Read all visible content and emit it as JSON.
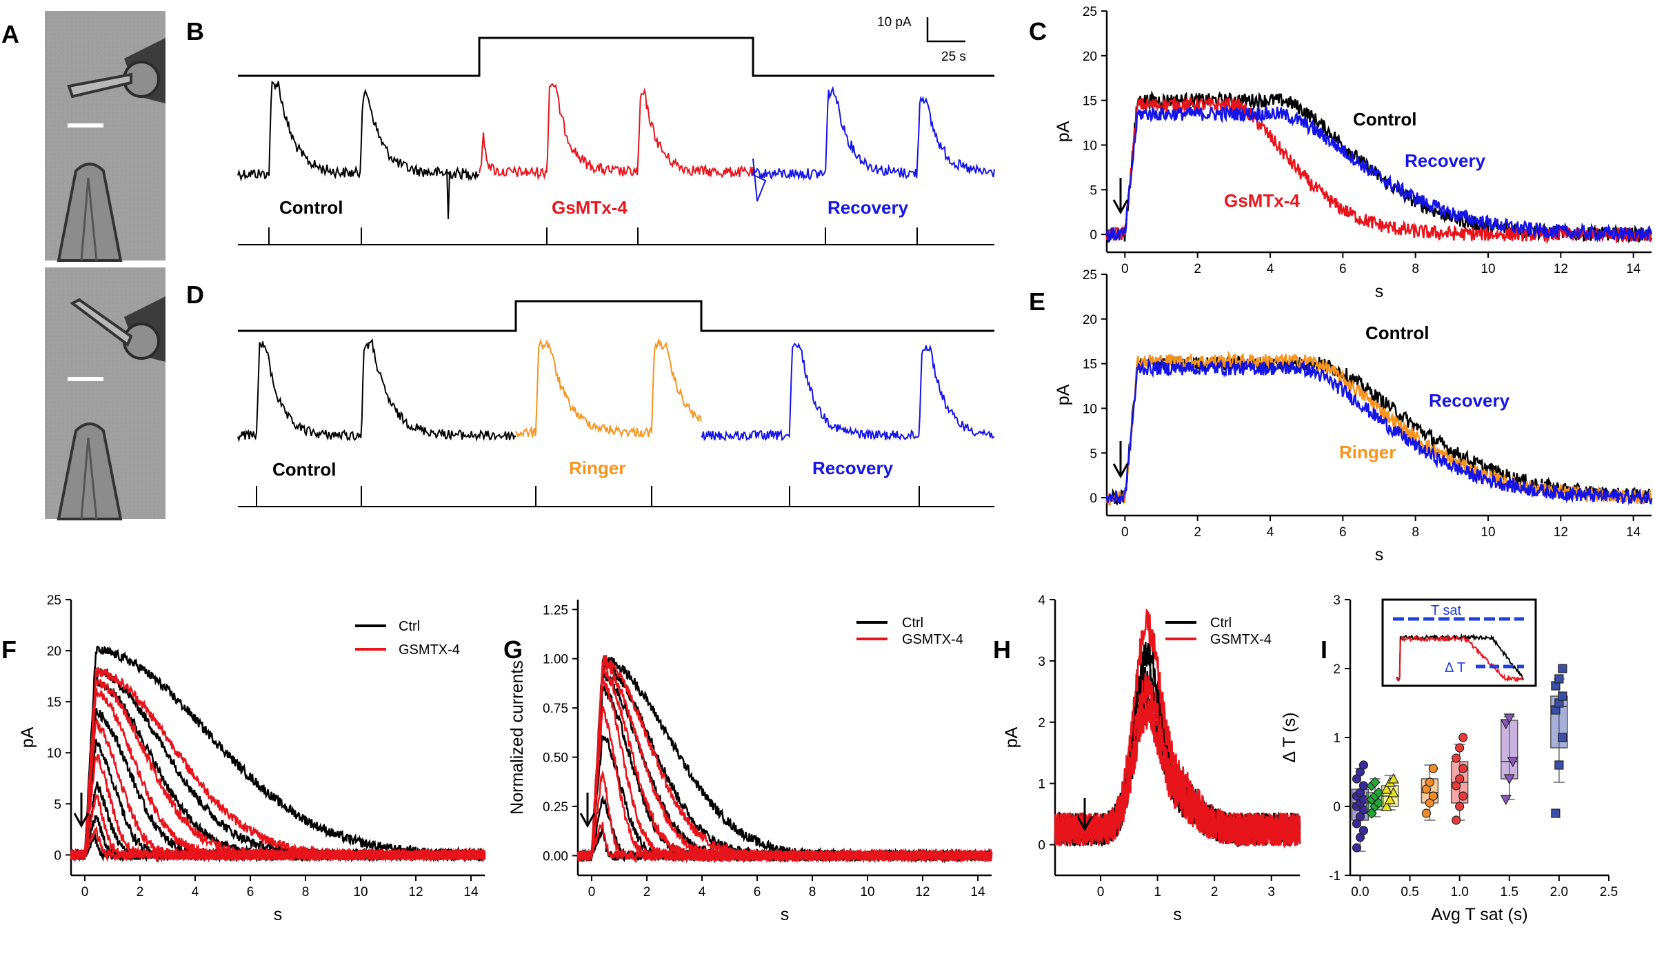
{
  "panels": [
    "A",
    "B",
    "C",
    "D",
    "E",
    "F",
    "G",
    "H",
    "I"
  ],
  "colors": {
    "control": "#000000",
    "gsmtx": "#e8141b",
    "recovery": "#1414e6",
    "ringer": "#f7941d",
    "insetBlue": "#1f3fe0"
  },
  "scalebar": {
    "current": "10 pA",
    "time": "25 s"
  },
  "chart_data": [
    {
      "panel": "B",
      "type": "line",
      "conditions": [
        {
          "label": "Control",
          "color": "#000000"
        },
        {
          "label": "GsMTx-4",
          "color": "#e8141b"
        },
        {
          "label": "Recovery",
          "color": "#1414e6"
        }
      ]
    },
    {
      "panel": "C",
      "type": "line",
      "xlabel": "s",
      "ylabel": "pA",
      "xlim": [
        -0.5,
        14.5
      ],
      "ylim": [
        -2,
        25
      ],
      "xticks": [
        0,
        2,
        4,
        6,
        8,
        10,
        12,
        14
      ],
      "yticks": [
        0,
        5,
        10,
        15,
        20,
        25
      ],
      "series": [
        {
          "name": "Control",
          "color": "#000000",
          "plateau": 15,
          "decay_start": 4.3,
          "tau": 3.0
        },
        {
          "name": "GsMTx-4",
          "color": "#e8141b",
          "plateau": 14.5,
          "decay_start": 3.0,
          "tau": 2.2
        },
        {
          "name": "Recovery",
          "color": "#1414e6",
          "plateau": 13.5,
          "decay_start": 4.2,
          "tau": 3.4
        }
      ]
    },
    {
      "panel": "D",
      "type": "line",
      "conditions": [
        {
          "label": "Control",
          "color": "#000000"
        },
        {
          "label": "Ringer",
          "color": "#f7941d"
        },
        {
          "label": "Recovery",
          "color": "#1414e6"
        }
      ]
    },
    {
      "panel": "E",
      "type": "line",
      "xlabel": "s",
      "ylabel": "pA",
      "xlim": [
        -0.5,
        14.5
      ],
      "ylim": [
        -2,
        25
      ],
      "xticks": [
        0,
        2,
        4,
        6,
        8,
        10,
        12,
        14
      ],
      "yticks": [
        0,
        5,
        10,
        15,
        20,
        25
      ],
      "series": [
        {
          "name": "Control",
          "color": "#000000",
          "plateau": 15,
          "decay_start": 5.3,
          "tau": 3.6
        },
        {
          "name": "Ringer",
          "color": "#f7941d",
          "plateau": 15.3,
          "decay_start": 5.0,
          "tau": 3.4
        },
        {
          "name": "Recovery",
          "color": "#1414e6",
          "plateau": 14.5,
          "decay_start": 4.8,
          "tau": 3.4
        }
      ]
    },
    {
      "panel": "F",
      "type": "line",
      "xlabel": "s",
      "ylabel": "pA",
      "xlim": [
        -0.5,
        14.5
      ],
      "ylim": [
        -2,
        25
      ],
      "xticks": [
        0,
        2,
        4,
        6,
        8,
        10,
        12,
        14
      ],
      "yticks": [
        0,
        5,
        10,
        15,
        20,
        25
      ],
      "legend": [
        {
          "name": "Ctrl",
          "color": "#000000"
        },
        {
          "name": "GSMTX-4",
          "color": "#e8141b"
        }
      ],
      "ctrl_amp": [
        20,
        18,
        17,
        14,
        11,
        7,
        4,
        2
      ],
      "ctrl_dur": [
        5.8,
        3.5,
        2.8,
        1.8,
        1.1,
        0.7,
        0.4,
        0.2
      ],
      "gsmtx_amp": [
        18,
        17,
        16,
        13,
        10,
        6,
        3
      ],
      "gsmtx_dur": [
        4.0,
        2.6,
        2.0,
        1.3,
        0.8,
        0.5,
        0.25
      ]
    },
    {
      "panel": "G",
      "type": "line",
      "xlabel": "s",
      "ylabel": "Normalized currents",
      "xlim": [
        -0.5,
        14.5
      ],
      "ylim": [
        -0.1,
        1.3
      ],
      "xticks": [
        0,
        2,
        4,
        6,
        8,
        10,
        12,
        14
      ],
      "yticks": [
        "0.00",
        "0.25",
        "0.50",
        "0.75",
        "1.00",
        "1.25"
      ],
      "legend": [
        {
          "name": "Ctrl",
          "color": "#000000"
        },
        {
          "name": "GSMTX-4",
          "color": "#e8141b"
        }
      ],
      "ctrl_amp": [
        1.0,
        0.97,
        0.92,
        0.85,
        0.62,
        0.3,
        0.15
      ],
      "ctrl_dur": [
        3.5,
        2.6,
        2.0,
        1.5,
        1.0,
        0.5,
        0.2
      ],
      "gsmtx_amp": [
        1.0,
        0.98,
        0.95,
        0.9,
        0.75,
        0.45,
        0.2
      ],
      "gsmtx_dur": [
        2.4,
        1.9,
        1.5,
        1.1,
        0.8,
        0.4,
        0.2
      ]
    },
    {
      "panel": "H",
      "type": "line",
      "xlabel": "s",
      "ylabel": "pA",
      "xlim": [
        -0.8,
        3.5
      ],
      "ylim": [
        -0.5,
        4
      ],
      "xticks": [
        0,
        1,
        2,
        3
      ],
      "yticks": [
        0,
        1,
        2,
        3,
        4
      ],
      "legend": [
        {
          "name": "Ctrl",
          "color": "#000000"
        },
        {
          "name": "GSMTX-4",
          "color": "#e8141b"
        }
      ],
      "ctrl_amp": [
        2.6,
        2.2,
        1.8
      ],
      "gsmtx_amp": [
        3.0,
        2.1,
        1.7
      ]
    },
    {
      "panel": "I",
      "type": "scatter",
      "xlabel": "Avg T sat (s)",
      "ylabel": "Δ T (s)",
      "xlim": [
        -0.1,
        2.5
      ],
      "ylim": [
        -1,
        3
      ],
      "xticks": [
        "0.0",
        "0.5",
        "1.0",
        "1.5",
        "2.0",
        "2.5"
      ],
      "yticks": [
        -1,
        0,
        1,
        2,
        3
      ],
      "inset": {
        "tsat_label": "T sat",
        "dt_label": "Δ T"
      },
      "groups": [
        {
          "x": 0.0,
          "color": "#3a2a9a",
          "marker": "circle",
          "q1": -0.2,
          "median": 0.05,
          "q3": 0.25,
          "wlo": -0.65,
          "whi": 0.55,
          "points": [
            -0.6,
            -0.45,
            -0.35,
            -0.25,
            -0.15,
            -0.05,
            0.0,
            0.05,
            0.1,
            0.15,
            0.2,
            0.3,
            0.4,
            0.5,
            0.6
          ]
        },
        {
          "x": 0.15,
          "color": "#22a838",
          "marker": "diamond",
          "q1": -0.05,
          "median": 0.05,
          "q3": 0.2,
          "wlo": -0.15,
          "whi": 0.4,
          "points": [
            -0.1,
            0.0,
            0.05,
            0.1,
            0.15,
            0.2,
            0.3,
            0.35
          ]
        },
        {
          "x": 0.3,
          "color": "#e8e020",
          "marker": "triangle",
          "q1": 0.0,
          "median": 0.15,
          "q3": 0.3,
          "wlo": -0.05,
          "whi": 0.45,
          "points": [
            0.0,
            0.1,
            0.2,
            0.25,
            0.35,
            0.4
          ]
        },
        {
          "x": 0.7,
          "color": "#f28c28",
          "marker": "circle",
          "q1": 0.05,
          "median": 0.2,
          "q3": 0.4,
          "wlo": -0.2,
          "whi": 0.6,
          "points": [
            -0.1,
            0.05,
            0.15,
            0.25,
            0.35,
            0.55
          ]
        },
        {
          "x": 1.0,
          "color": "#e83a3a",
          "marker": "circle",
          "q1": 0.05,
          "median": 0.35,
          "q3": 0.65,
          "wlo": -0.2,
          "whi": 0.9,
          "points": [
            -0.2,
            0.0,
            0.15,
            0.3,
            0.4,
            0.55,
            0.7,
            0.85,
            1.0
          ]
        },
        {
          "x": 1.5,
          "color": "#8a58b8",
          "marker": "triangle-down",
          "q1": 0.4,
          "median": 0.65,
          "q3": 1.25,
          "wlo": 0.1,
          "whi": 1.3,
          "points": [
            0.1,
            0.4,
            0.65,
            1.2,
            1.28
          ]
        },
        {
          "x": 2.0,
          "color": "#3a4fa8",
          "marker": "square",
          "q1": 0.85,
          "median": 1.45,
          "q3": 1.6,
          "wlo": 0.35,
          "whi": 1.85,
          "points": [
            -0.1,
            0.6,
            1.0,
            1.4,
            1.5,
            1.6,
            1.75,
            1.85,
            2.0
          ]
        }
      ]
    }
  ]
}
